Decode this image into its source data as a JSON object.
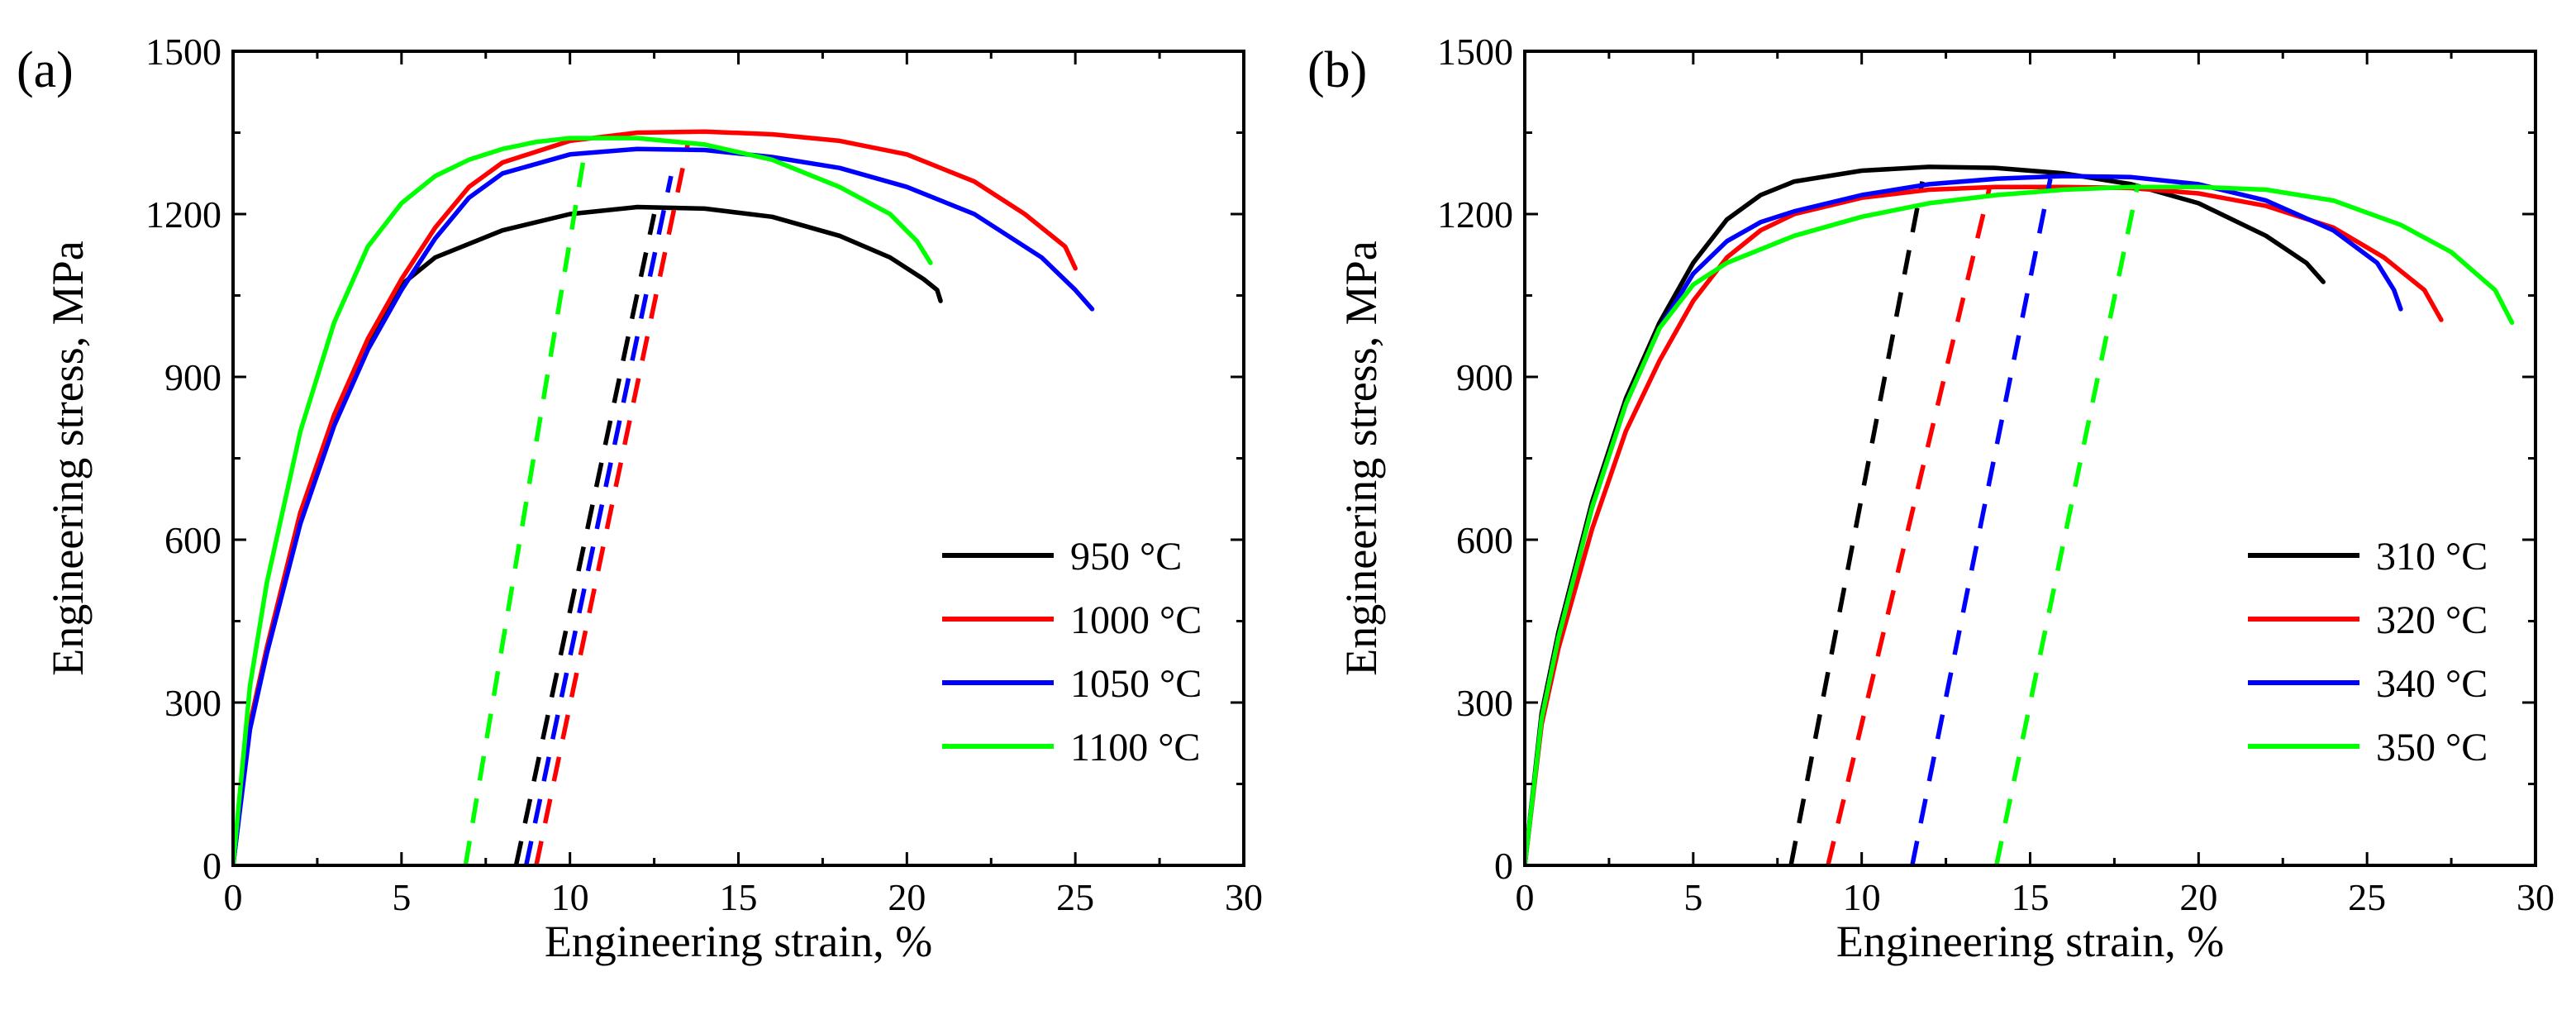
{
  "chart_data": [
    {
      "type": "line",
      "panel_label": "(a)",
      "xlabel": "Engineering strain, %",
      "ylabel": "Engineering stress, MPa",
      "xlim": [
        0,
        30
      ],
      "ylim": [
        0,
        1500
      ],
      "xticks": [
        0,
        5,
        10,
        15,
        20,
        25,
        30
      ],
      "yticks": [
        0,
        300,
        600,
        900,
        1200,
        1500
      ],
      "legend_position": "bottom-right",
      "series": [
        {
          "name": "950 °C",
          "color": "#000000",
          "x": [
            0,
            0.5,
            1,
            2,
            3,
            4,
            5,
            6,
            8,
            10,
            12,
            14,
            16,
            18,
            19.5,
            20.5,
            20.9,
            21.0
          ],
          "y": [
            0,
            260,
            400,
            650,
            820,
            960,
            1070,
            1120,
            1170,
            1200,
            1213,
            1210,
            1195,
            1160,
            1120,
            1080,
            1060,
            1040
          ],
          "unload_x": [
            8.4,
            12.5
          ],
          "unload_y": [
            0,
            1200
          ]
        },
        {
          "name": "1000 °C",
          "color": "#ff0000",
          "x": [
            0,
            0.5,
            1,
            2,
            3,
            4,
            5,
            6,
            7,
            8,
            10,
            12,
            14,
            16,
            18,
            20,
            22,
            23.5,
            24.7,
            25.0
          ],
          "y": [
            0,
            260,
            400,
            650,
            830,
            970,
            1080,
            1175,
            1250,
            1295,
            1335,
            1350,
            1352,
            1347,
            1335,
            1310,
            1260,
            1200,
            1140,
            1100
          ],
          "unload_x": [
            9.0,
            13.5
          ],
          "unload_y": [
            0,
            1330
          ]
        },
        {
          "name": "1050 °C",
          "color": "#0000ff",
          "x": [
            0,
            0.5,
            1,
            2,
            3,
            4,
            5,
            6,
            7,
            8,
            10,
            12,
            14,
            16,
            18,
            20,
            22,
            24,
            25.0,
            25.5
          ],
          "y": [
            0,
            250,
            390,
            630,
            810,
            950,
            1060,
            1155,
            1230,
            1275,
            1310,
            1320,
            1318,
            1305,
            1285,
            1250,
            1200,
            1120,
            1060,
            1025
          ],
          "unload_x": [
            8.7,
            13.0
          ],
          "unload_y": [
            0,
            1270
          ]
        },
        {
          "name": "1100 °C",
          "color": "#00ff00",
          "x": [
            0,
            0.5,
            1,
            2,
            3,
            4,
            5,
            6,
            7,
            8,
            9,
            10,
            12,
            14,
            16,
            18,
            19.5,
            20.3,
            20.7
          ],
          "y": [
            0,
            330,
            520,
            800,
            1000,
            1140,
            1220,
            1270,
            1300,
            1320,
            1333,
            1340,
            1340,
            1328,
            1300,
            1250,
            1200,
            1150,
            1110
          ],
          "unload_x": [
            6.9,
            10.4
          ],
          "unload_y": [
            0,
            1300
          ]
        }
      ]
    },
    {
      "type": "line",
      "panel_label": "(b)",
      "xlabel": "Engineering strain, %",
      "ylabel": "Engineering stress, MPa",
      "xlim": [
        0,
        30
      ],
      "ylim": [
        0,
        1500
      ],
      "xticks": [
        0,
        5,
        10,
        15,
        20,
        25,
        30
      ],
      "yticks": [
        0,
        300,
        600,
        900,
        1200,
        1500
      ],
      "legend_position": "bottom-right",
      "series": [
        {
          "name": "310 °C",
          "color": "#000000",
          "x": [
            0,
            0.5,
            1,
            2,
            3,
            4,
            5,
            6,
            7,
            8,
            10,
            12,
            14,
            16,
            18,
            20,
            22,
            23.2,
            23.7
          ],
          "y": [
            0,
            280,
            430,
            670,
            860,
            1000,
            1110,
            1190,
            1235,
            1260,
            1280,
            1287,
            1285,
            1275,
            1255,
            1220,
            1160,
            1110,
            1075
          ],
          "unload_x": [
            7.9,
            11.8
          ],
          "unload_y": [
            0,
            1260
          ]
        },
        {
          "name": "320 °C",
          "color": "#ff0000",
          "x": [
            0,
            0.5,
            1,
            2,
            3,
            4,
            5,
            6,
            7,
            8,
            10,
            12,
            14,
            16,
            18,
            20,
            22,
            24,
            25.5,
            26.7,
            27.2
          ],
          "y": [
            0,
            260,
            400,
            620,
            800,
            930,
            1040,
            1120,
            1170,
            1200,
            1230,
            1245,
            1250,
            1250,
            1248,
            1238,
            1215,
            1175,
            1120,
            1060,
            1005
          ],
          "unload_x": [
            9.0,
            13.8
          ],
          "unload_y": [
            0,
            1250
          ]
        },
        {
          "name": "340 °C",
          "color": "#0000ff",
          "x": [
            0,
            0.5,
            1,
            2,
            3,
            4,
            5,
            6,
            7,
            8,
            10,
            12,
            14,
            16,
            18,
            20,
            22,
            24,
            25.3,
            25.8,
            26.0
          ],
          "y": [
            0,
            270,
            420,
            660,
            850,
            990,
            1090,
            1150,
            1185,
            1205,
            1235,
            1255,
            1265,
            1270,
            1268,
            1255,
            1225,
            1170,
            1110,
            1060,
            1025
          ],
          "unload_x": [
            11.5,
            15.6
          ],
          "unload_y": [
            0,
            1265
          ]
        },
        {
          "name": "350 °C",
          "color": "#00ff00",
          "x": [
            0,
            0.5,
            1,
            2,
            3,
            4,
            5,
            6,
            8,
            10,
            12,
            14,
            16,
            18,
            20,
            22,
            24,
            26,
            27.5,
            28.8,
            29.3
          ],
          "y": [
            0,
            270,
            420,
            660,
            850,
            990,
            1070,
            1110,
            1160,
            1195,
            1220,
            1235,
            1245,
            1250,
            1250,
            1245,
            1225,
            1180,
            1130,
            1060,
            1000
          ],
          "unload_x": [
            14.0,
            18.2
          ],
          "unload_y": [
            0,
            1255
          ]
        }
      ]
    }
  ]
}
